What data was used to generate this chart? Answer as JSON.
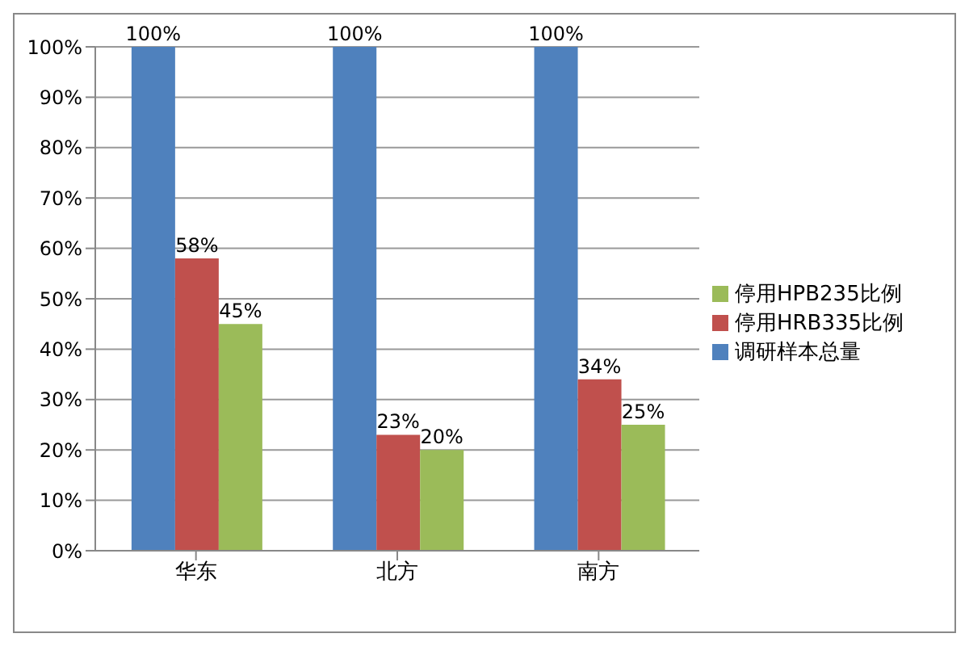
{
  "chart_data": {
    "type": "bar",
    "categories": [
      "华东",
      "北方",
      "南方"
    ],
    "series": [
      {
        "name": "调研样本总量",
        "color": "#4f81bd",
        "values": [
          100,
          100,
          100
        ],
        "value_labels": [
          "100%",
          "100%",
          "100%"
        ]
      },
      {
        "name": "停用HRB335比例",
        "color": "#c0504d",
        "values": [
          58,
          23,
          34
        ],
        "value_labels": [
          "58%",
          "23%",
          "34%"
        ]
      },
      {
        "name": "停用HPB235比例",
        "color": "#9bbb59",
        "values": [
          45,
          20,
          25
        ],
        "value_labels": [
          "45%",
          "20%",
          "25%"
        ]
      }
    ],
    "ylim": [
      0,
      100
    ],
    "yticks": [
      {
        "value": 0,
        "label": "0%"
      },
      {
        "value": 10,
        "label": "10%"
      },
      {
        "value": 20,
        "label": "20%"
      },
      {
        "value": 30,
        "label": "30%"
      },
      {
        "value": 40,
        "label": "40%"
      },
      {
        "value": 50,
        "label": "50%"
      },
      {
        "value": 60,
        "label": "60%"
      },
      {
        "value": 70,
        "label": "70%"
      },
      {
        "value": 80,
        "label": "80%"
      },
      {
        "value": 90,
        "label": "90%"
      },
      {
        "value": 100,
        "label": "100%"
      }
    ],
    "grid": "y",
    "legend": "right"
  }
}
